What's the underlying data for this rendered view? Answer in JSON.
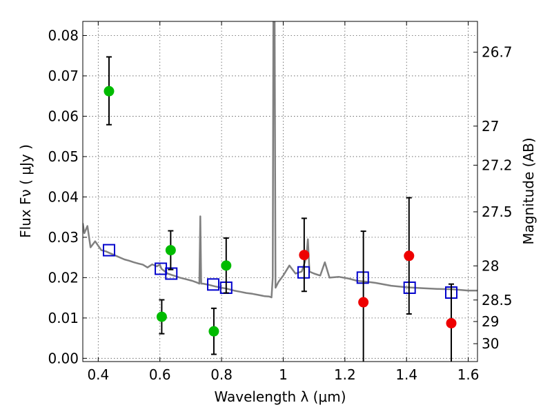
{
  "chart_data": {
    "type": "scatter",
    "xlabel": "Wavelength  λ (μm)",
    "ylabel": "Flux  Fν  ( μJy )",
    "y2label": "Magnitude (AB)",
    "xlim": [
      0.35,
      1.63
    ],
    "ylim": [
      -0.0008,
      0.0835
    ],
    "grid": true,
    "x_ticks": [
      "0.4",
      "0.6",
      "0.8",
      "1",
      "1.2",
      "1.4",
      "1.6"
    ],
    "y_ticks": [
      "0.00",
      "0.01",
      "0.02",
      "0.03",
      "0.04",
      "0.05",
      "0.06",
      "0.07",
      "0.08"
    ],
    "mag_ticks": [
      "26.7",
      "27",
      "27.2",
      "27.5",
      "28",
      "28.5",
      "29",
      "30"
    ],
    "colors": {
      "sed": "#808080",
      "model": "#0000cc",
      "green": "#00bb00",
      "red": "#ee0000",
      "errorbar": "#000000"
    },
    "series": [
      {
        "marker": "line",
        "color": "#808080",
        "x": [
          0.35,
          0.355,
          0.365,
          0.375,
          0.39,
          0.41,
          0.425,
          0.44,
          0.455,
          0.47,
          0.485,
          0.5,
          0.515,
          0.53,
          0.545,
          0.56,
          0.575,
          0.59,
          0.6,
          0.605,
          0.625,
          0.645,
          0.665,
          0.685,
          0.705,
          0.72,
          0.728,
          0.731,
          0.734,
          0.74,
          0.76,
          0.78,
          0.8,
          0.82,
          0.84,
          0.86,
          0.88,
          0.9,
          0.92,
          0.94,
          0.955,
          0.962,
          0.966,
          0.968,
          0.972,
          0.975,
          0.985,
          1.0,
          1.02,
          1.04,
          1.06,
          1.075,
          1.08,
          1.085,
          1.1,
          1.12,
          1.135,
          1.15,
          1.18,
          1.21,
          1.24,
          1.27,
          1.3,
          1.35,
          1.4,
          1.45,
          1.5,
          1.55,
          1.6,
          1.63
        ],
        "y": [
          0.0335,
          0.031,
          0.0328,
          0.0275,
          0.029,
          0.0268,
          0.0265,
          0.026,
          0.0255,
          0.025,
          0.0245,
          0.0242,
          0.0238,
          0.0235,
          0.0232,
          0.0225,
          0.0233,
          0.0228,
          0.0232,
          0.0222,
          0.021,
          0.0205,
          0.02,
          0.0196,
          0.0192,
          0.0188,
          0.0185,
          0.0352,
          0.0185,
          0.0185,
          0.0182,
          0.0178,
          0.0175,
          0.0172,
          0.0168,
          0.0165,
          0.0162,
          0.016,
          0.0157,
          0.0154,
          0.0153,
          0.0151,
          0.02,
          0.084,
          0.084,
          0.0175,
          0.019,
          0.0205,
          0.023,
          0.021,
          0.0215,
          0.025,
          0.0295,
          0.0215,
          0.021,
          0.0205,
          0.0238,
          0.02,
          0.0202,
          0.0198,
          0.0192,
          0.019,
          0.0187,
          0.018,
          0.0176,
          0.0174,
          0.0172,
          0.0171,
          0.0168,
          0.0168
        ]
      },
      {
        "marker": "open-square",
        "color": "#0000cc",
        "x": [
          0.435,
          0.603,
          0.637,
          0.773,
          0.815,
          1.066,
          1.258,
          1.41,
          1.545
        ],
        "y": [
          0.0268,
          0.0222,
          0.021,
          0.0183,
          0.0175,
          0.0213,
          0.02,
          0.0175,
          0.0163
        ]
      },
      {
        "marker": "filled-circle",
        "color": "#00bb00",
        "x": [
          0.435,
          0.606,
          0.635,
          0.775,
          0.815
        ],
        "y": [
          0.0662,
          0.0103,
          0.0268,
          0.0067,
          0.023
        ],
        "yerr_low": [
          0.0083,
          0.0042,
          0.0048,
          0.0057,
          0.0068
        ],
        "yerr_high": [
          0.0085,
          0.0042,
          0.0048,
          0.0057,
          0.0068
        ]
      },
      {
        "marker": "filled-circle",
        "color": "#ee0000",
        "x": [
          1.068,
          1.26,
          1.408,
          1.545
        ],
        "y": [
          0.0256,
          0.0139,
          0.0254,
          0.0087
        ],
        "yerr_low": [
          0.009,
          0.0151,
          0.0144,
          0.0097
        ],
        "yerr_high": [
          0.0091,
          0.0176,
          0.0144,
          0.0097
        ]
      }
    ]
  }
}
